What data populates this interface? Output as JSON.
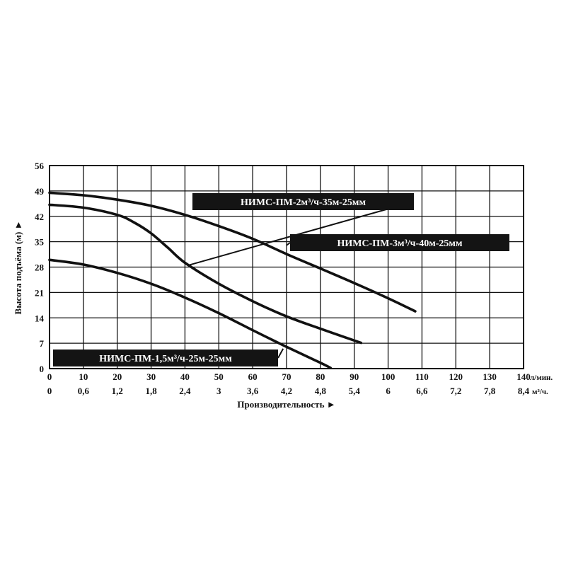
{
  "chart_data": {
    "type": "line",
    "xlabel": "Производительность ►",
    "ylabel": "Высота подъёма (м) ►",
    "x_unit_primary": "л/мин.",
    "x_unit_secondary": "м³/ч.",
    "xlim": [
      0,
      140
    ],
    "ylim": [
      0,
      56
    ],
    "grid": true,
    "y_ticks": [
      "0",
      "7",
      "14",
      "21",
      "28",
      "35",
      "42",
      "49",
      "56"
    ],
    "x_ticks_primary": [
      "0",
      "10",
      "20",
      "30",
      "40",
      "50",
      "60",
      "70",
      "80",
      "90",
      "100",
      "110",
      "120",
      "130",
      "140"
    ],
    "x_ticks_secondary": [
      "0",
      "0,6",
      "1,2",
      "1,8",
      "2,4",
      "3",
      "3,6",
      "4,2",
      "4,8",
      "5,4",
      "6",
      "6,6",
      "7,2",
      "7,8",
      "8,4"
    ],
    "series": [
      {
        "name": "НИМС-ПМ-2м³/ч-35м-25мм",
        "x": [
          0,
          10,
          20,
          30,
          40,
          50,
          60,
          70,
          80,
          90,
          100,
          108
        ],
        "y": [
          48.5,
          47.8,
          46.6,
          44.9,
          42.4,
          39.3,
          35.8,
          31.6,
          27.6,
          23.6,
          19.4,
          15.8
        ]
      },
      {
        "name": "НИМС-ПМ-3м³/ч-40м-25мм",
        "x": [
          0,
          10,
          20,
          25,
          30,
          35,
          40,
          50,
          60,
          70,
          80,
          92
        ],
        "y": [
          45.2,
          44.4,
          42.4,
          40.3,
          37.3,
          33.3,
          29.2,
          23.4,
          18.6,
          14.4,
          11.0,
          7.1
        ]
      },
      {
        "name": "НИМС-ПМ-1,5м³/ч-25м-25мм",
        "x": [
          0,
          10,
          20,
          30,
          40,
          50,
          60,
          70,
          80,
          83
        ],
        "y": [
          30.0,
          28.7,
          26.4,
          23.4,
          19.6,
          15.3,
          10.6,
          6.0,
          1.6,
          0.2
        ]
      }
    ],
    "labels": [
      {
        "text": "НИМС-ПМ-2м³/ч-35м-25мм",
        "leader_to": [
          41,
          28.5
        ]
      },
      {
        "text": "НИМС-ПМ-3м³/ч-40м-25мм",
        "leader_to": [
          70,
          34
        ]
      },
      {
        "text": "НИМС-ПМ-1,5м³/ч-25м-25мм",
        "leader_to": [
          69,
          5.5
        ]
      }
    ]
  }
}
